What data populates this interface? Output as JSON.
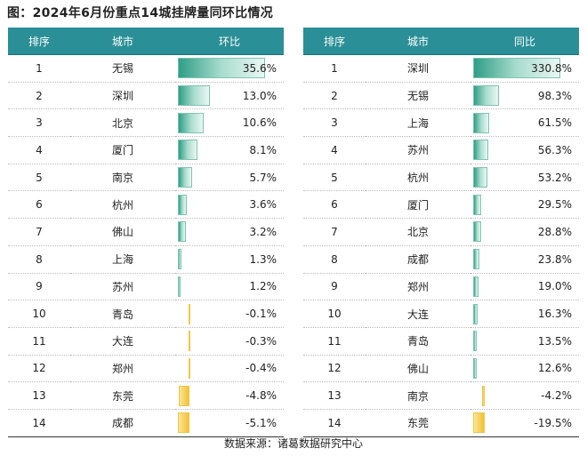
{
  "title": "图：2024年6月份重点14城挂牌量同环比情况",
  "source": "数据来源：诸葛数据研究中心",
  "colors": {
    "header": "#2a8f96",
    "positive_bar": "#2f9e86",
    "negative_bar": "#f2c231"
  },
  "chart_data": [
    {
      "type": "table",
      "headers": [
        "排序",
        "城市",
        "环比"
      ],
      "ranks": [
        "1",
        "2",
        "3",
        "4",
        "5",
        "6",
        "7",
        "8",
        "9",
        "10",
        "11",
        "12",
        "13",
        "14"
      ],
      "categories": [
        "无锡",
        "深圳",
        "北京",
        "厦门",
        "南京",
        "杭州",
        "佛山",
        "上海",
        "苏州",
        "青岛",
        "大连",
        "郑州",
        "东莞",
        "成都"
      ],
      "values": [
        35.6,
        13.0,
        10.6,
        8.1,
        5.7,
        3.6,
        3.2,
        1.3,
        1.2,
        -0.1,
        -0.3,
        -0.4,
        -4.8,
        -5.1
      ],
      "labels": [
        "35.6%",
        "13.0%",
        "10.6%",
        "8.1%",
        "5.7%",
        "3.6%",
        "3.2%",
        "1.3%",
        "1.2%",
        "-0.1%",
        "-0.3%",
        "-0.4%",
        "-4.8%",
        "-5.1%"
      ]
    },
    {
      "type": "table",
      "headers": [
        "排序",
        "城市",
        "同比"
      ],
      "ranks": [
        "1",
        "2",
        "3",
        "4",
        "5",
        "6",
        "7",
        "8",
        "9",
        "10",
        "11",
        "12",
        "13",
        "14"
      ],
      "categories": [
        "深圳",
        "无锡",
        "上海",
        "苏州",
        "杭州",
        "厦门",
        "北京",
        "成都",
        "郑州",
        "大连",
        "青岛",
        "佛山",
        "南京",
        "东莞"
      ],
      "values": [
        330.8,
        98.3,
        61.5,
        56.3,
        53.2,
        29.5,
        28.8,
        23.8,
        19.0,
        16.3,
        13.5,
        12.6,
        -4.2,
        -19.5
      ],
      "labels": [
        "330.8%",
        "98.3%",
        "61.5%",
        "56.3%",
        "53.2%",
        "29.5%",
        "28.8%",
        "23.8%",
        "19.0%",
        "16.3%",
        "13.5%",
        "12.6%",
        "-4.2%",
        "-19.5%"
      ]
    }
  ]
}
